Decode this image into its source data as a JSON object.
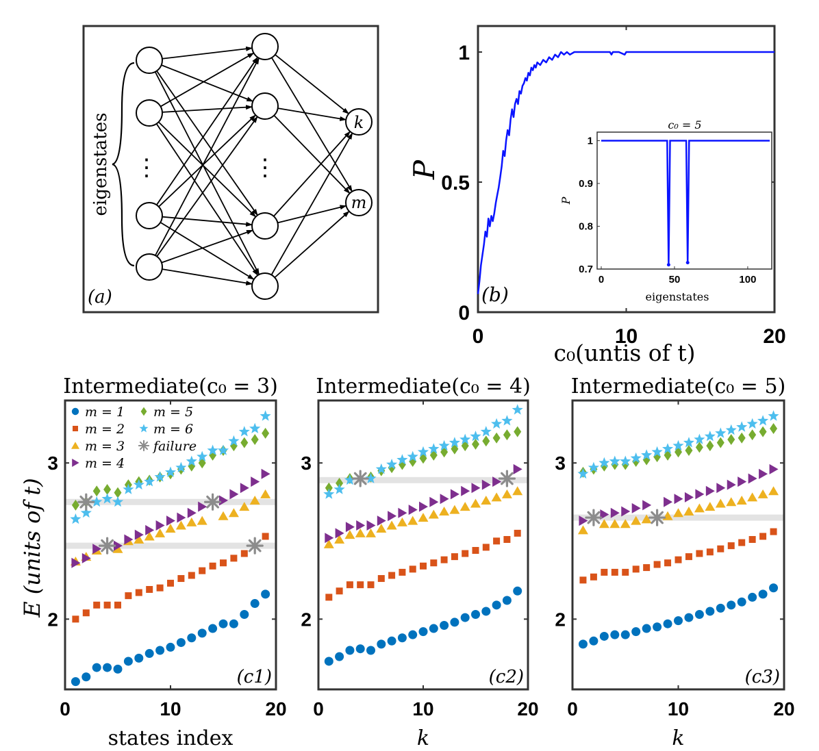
{
  "colors": {
    "m1": "#0072BD",
    "m2": "#D95319",
    "m3": "#EDB120",
    "m4": "#7E2F8E",
    "m5": "#77AC30",
    "m6": "#4DBEEE",
    "failure": "#8c8c8c",
    "prob": "#0a14ff",
    "band": "#e3e3e3"
  },
  "diagram": {
    "panel_label": "(a)",
    "input_label": "eigenstates",
    "output_labels": [
      "k",
      "m"
    ],
    "dots": "⋮"
  },
  "chart_data": [
    {
      "type": "line",
      "panel_label": "(b)",
      "xlabel": "c₀(untis of t)",
      "ylabel": "P",
      "xlim": [
        0,
        20
      ],
      "ylim": [
        0,
        1.1
      ],
      "xticks": [
        "0",
        "10",
        "20"
      ],
      "yticks": [
        "0",
        "0.5",
        "1"
      ],
      "series": [
        {
          "x": [
            0,
            0.1,
            0.2,
            0.3,
            0.4,
            0.5,
            0.6,
            0.7,
            0.8,
            0.9,
            1.0,
            1.1,
            1.2,
            1.3,
            1.4,
            1.5,
            1.6,
            1.7,
            1.8,
            1.9,
            2.0,
            2.1,
            2.2,
            2.3,
            2.4,
            2.5,
            2.6,
            2.7,
            2.8,
            2.9,
            3.0,
            3.1,
            3.2,
            3.3,
            3.4,
            3.5,
            3.6,
            3.7,
            3.8,
            3.9,
            4.0,
            4.2,
            4.4,
            4.6,
            4.8,
            5.0,
            5.2,
            5.4,
            5.6,
            5.8,
            6.0,
            6.2,
            6.5,
            7,
            8,
            8.9,
            9.0,
            9.1,
            9.5,
            9.9,
            10.0,
            10.1,
            11,
            12,
            14,
            16,
            18,
            20
          ],
          "y": [
            0.07,
            0.12,
            0.18,
            0.22,
            0.26,
            0.31,
            0.29,
            0.36,
            0.33,
            0.37,
            0.35,
            0.38,
            0.42,
            0.45,
            0.48,
            0.52,
            0.56,
            0.62,
            0.6,
            0.66,
            0.7,
            0.68,
            0.74,
            0.78,
            0.75,
            0.8,
            0.82,
            0.8,
            0.85,
            0.84,
            0.87,
            0.88,
            0.9,
            0.89,
            0.92,
            0.91,
            0.94,
            0.93,
            0.95,
            0.94,
            0.96,
            0.95,
            0.97,
            0.96,
            0.98,
            0.97,
            0.99,
            0.98,
            1.0,
            0.99,
            1.0,
            0.99,
            1.0,
            1.0,
            1.0,
            1.0,
            0.99,
            1.0,
            1.0,
            0.99,
            1.0,
            1.0,
            1.0,
            1.0,
            1.0,
            1.0,
            1.0,
            1.0
          ]
        }
      ]
    },
    {
      "type": "line",
      "title": "c₀ = 5",
      "xlabel": "eigenstates",
      "ylabel": "P",
      "xlim": [
        0,
        115
      ],
      "ylim": [
        0.7,
        1.02
      ],
      "xticks": [
        "0",
        "50",
        "100"
      ],
      "yticks": [
        "0.7",
        "0.8",
        "0.9",
        "1"
      ],
      "series": [
        {
          "x": [
            0,
            45,
            46,
            47,
            58,
            59,
            60,
            115
          ],
          "y": [
            1,
            1,
            0.71,
            1,
            1,
            0.715,
            1,
            1
          ]
        }
      ]
    },
    {
      "type": "scatter",
      "panel_label": "(c1)",
      "title": "Intermediate(c₀ = 3)",
      "xlabel": "states index",
      "ylabel": "E (units of t)",
      "xlim": [
        0,
        20
      ],
      "ylim": [
        1.55,
        3.4
      ],
      "xticks": [
        "0",
        "10",
        "20"
      ],
      "yticks": [
        "2",
        "3"
      ],
      "legend": {
        "placement": "top-left",
        "entries": [
          {
            "key": "m1",
            "label": "m = 1"
          },
          {
            "key": "m5",
            "label": "m = 5"
          },
          {
            "key": "m2",
            "label": "m = 2"
          },
          {
            "key": "m6",
            "label": "m = 6"
          },
          {
            "key": "m3",
            "label": "m = 3"
          },
          {
            "key": "failure",
            "label": "failure"
          },
          {
            "key": "m4",
            "label": "m = 4"
          }
        ]
      },
      "bands": [
        2.47,
        2.75
      ],
      "series": [
        {
          "name": "m = 1",
          "key": "m1",
          "x": [
            1,
            2,
            3,
            4,
            5,
            6,
            7,
            8,
            9,
            10,
            11,
            12,
            13,
            14,
            15,
            16,
            17,
            18,
            19
          ],
          "y": [
            1.6,
            1.63,
            1.69,
            1.69,
            1.68,
            1.73,
            1.75,
            1.78,
            1.8,
            1.82,
            1.85,
            1.88,
            1.91,
            1.94,
            1.97,
            1.97,
            2.03,
            2.1,
            2.16
          ]
        },
        {
          "name": "m = 2",
          "key": "m2",
          "x": [
            1,
            2,
            3,
            4,
            5,
            6,
            7,
            8,
            9,
            10,
            11,
            12,
            13,
            14,
            15,
            16,
            17,
            19
          ],
          "y": [
            2.0,
            2.04,
            2.09,
            2.09,
            2.09,
            2.15,
            2.17,
            2.19,
            2.2,
            2.23,
            2.26,
            2.28,
            2.31,
            2.34,
            2.36,
            2.39,
            2.42,
            2.53
          ]
        },
        {
          "name": "m = 3",
          "key": "m3",
          "x": [
            1,
            2,
            3,
            5,
            6,
            7,
            8,
            9,
            10,
            11,
            12,
            13,
            15,
            16,
            17,
            18,
            19
          ],
          "y": [
            2.37,
            2.4,
            2.44,
            2.45,
            2.5,
            2.51,
            2.53,
            2.55,
            2.58,
            2.6,
            2.62,
            2.63,
            2.66,
            2.68,
            2.72,
            2.76,
            2.8
          ]
        },
        {
          "name": "m = 4",
          "key": "m4",
          "x": [
            1,
            2,
            3,
            5,
            6,
            7,
            8,
            9,
            10,
            11,
            12,
            13,
            15,
            16,
            17,
            18,
            19
          ],
          "y": [
            2.36,
            2.39,
            2.45,
            2.47,
            2.51,
            2.54,
            2.57,
            2.6,
            2.63,
            2.65,
            2.68,
            2.72,
            2.76,
            2.8,
            2.84,
            2.88,
            2.93
          ]
        },
        {
          "name": "m = 5",
          "key": "m5",
          "x": [
            1,
            2,
            3,
            4,
            5,
            6,
            7,
            8,
            9,
            10,
            11,
            12,
            13,
            14,
            15,
            16,
            17,
            18,
            19
          ],
          "y": [
            2.73,
            2.75,
            2.82,
            2.83,
            2.81,
            2.86,
            2.88,
            2.89,
            2.91,
            2.93,
            2.96,
            2.98,
            3.0,
            3.05,
            3.08,
            3.11,
            3.13,
            3.15,
            3.19
          ]
        },
        {
          "name": "m = 6",
          "key": "m6",
          "x": [
            1,
            2,
            3,
            4,
            5,
            6,
            7,
            8,
            9,
            10,
            11,
            12,
            13,
            14,
            15,
            16,
            17,
            18,
            19
          ],
          "y": [
            2.64,
            2.68,
            2.75,
            2.77,
            2.75,
            2.83,
            2.86,
            2.88,
            2.91,
            2.94,
            2.97,
            3.01,
            3.04,
            3.08,
            3.08,
            3.14,
            3.2,
            3.22,
            3.3
          ]
        },
        {
          "name": "failure",
          "key": "failure",
          "x": [
            2,
            4,
            14,
            18
          ],
          "y": [
            2.75,
            2.47,
            2.75,
            2.47
          ]
        }
      ]
    },
    {
      "type": "scatter",
      "panel_label": "(c2)",
      "title": "Intermediate(c₀ = 4)",
      "xlabel": "k",
      "ylabel": "",
      "xlim": [
        0,
        20
      ],
      "ylim": [
        1.55,
        3.4
      ],
      "xticks": [
        "0",
        "10",
        "20"
      ],
      "yticks": [
        "2",
        "3"
      ],
      "bands": [
        2.89
      ],
      "series": [
        {
          "name": "m = 1",
          "key": "m1",
          "x": [
            1,
            2,
            3,
            4,
            5,
            6,
            7,
            8,
            9,
            10,
            11,
            12,
            13,
            14,
            15,
            16,
            17,
            18,
            19
          ],
          "y": [
            1.73,
            1.76,
            1.8,
            1.81,
            1.8,
            1.84,
            1.86,
            1.88,
            1.9,
            1.92,
            1.94,
            1.96,
            1.98,
            2.01,
            2.03,
            2.05,
            2.09,
            2.12,
            2.18
          ]
        },
        {
          "name": "m = 2",
          "key": "m2",
          "x": [
            1,
            2,
            3,
            4,
            5,
            6,
            7,
            8,
            9,
            10,
            11,
            12,
            13,
            14,
            15,
            16,
            17,
            18,
            19
          ],
          "y": [
            2.14,
            2.18,
            2.22,
            2.22,
            2.22,
            2.26,
            2.28,
            2.3,
            2.32,
            2.34,
            2.36,
            2.38,
            2.4,
            2.42,
            2.44,
            2.46,
            2.5,
            2.51,
            2.55
          ]
        },
        {
          "name": "m = 3",
          "key": "m3",
          "x": [
            1,
            2,
            3,
            4,
            5,
            6,
            7,
            8,
            9,
            10,
            11,
            12,
            13,
            14,
            15,
            16,
            17,
            18,
            19
          ],
          "y": [
            2.48,
            2.51,
            2.54,
            2.55,
            2.55,
            2.58,
            2.6,
            2.62,
            2.63,
            2.65,
            2.67,
            2.69,
            2.7,
            2.72,
            2.74,
            2.76,
            2.78,
            2.8,
            2.82
          ]
        },
        {
          "name": "m = 4",
          "key": "m4",
          "x": [
            1,
            2,
            3,
            4,
            5,
            6,
            7,
            8,
            9,
            10,
            11,
            12,
            13,
            14,
            15,
            16,
            17,
            19
          ],
          "y": [
            2.52,
            2.55,
            2.59,
            2.6,
            2.6,
            2.63,
            2.66,
            2.68,
            2.7,
            2.72,
            2.75,
            2.77,
            2.8,
            2.82,
            2.84,
            2.86,
            2.88,
            2.96
          ]
        },
        {
          "name": "m = 5",
          "key": "m5",
          "x": [
            1,
            2,
            3,
            5,
            6,
            7,
            8,
            9,
            10,
            11,
            12,
            13,
            14,
            15,
            16,
            17,
            18,
            19
          ],
          "y": [
            2.84,
            2.87,
            2.9,
            2.91,
            2.95,
            2.97,
            2.99,
            3.01,
            3.03,
            3.05,
            3.07,
            3.09,
            3.11,
            3.12,
            3.14,
            3.16,
            3.18,
            3.2
          ]
        },
        {
          "name": "m = 6",
          "key": "m6",
          "x": [
            1,
            2,
            3,
            5,
            6,
            7,
            8,
            9,
            10,
            11,
            12,
            13,
            14,
            15,
            16,
            17,
            18,
            19
          ],
          "y": [
            2.8,
            2.83,
            2.89,
            2.9,
            2.96,
            2.99,
            3.02,
            3.04,
            3.07,
            3.09,
            3.11,
            3.13,
            3.15,
            3.17,
            3.2,
            3.25,
            3.27,
            3.34
          ]
        },
        {
          "name": "failure",
          "key": "failure",
          "x": [
            4,
            18
          ],
          "y": [
            2.9,
            2.9
          ]
        }
      ]
    },
    {
      "type": "scatter",
      "panel_label": "(c3)",
      "title": "Intermediate(c₀ = 5)",
      "xlabel": "k",
      "ylabel": "",
      "xlim": [
        0,
        20
      ],
      "ylim": [
        1.55,
        3.4
      ],
      "xticks": [
        "0",
        "10",
        "20"
      ],
      "yticks": [
        "2",
        "3"
      ],
      "bands": [
        2.65
      ],
      "series": [
        {
          "name": "m = 1",
          "key": "m1",
          "x": [
            1,
            2,
            3,
            4,
            5,
            6,
            7,
            8,
            9,
            10,
            11,
            12,
            13,
            14,
            15,
            16,
            17,
            18,
            19
          ],
          "y": [
            1.84,
            1.86,
            1.89,
            1.9,
            1.9,
            1.92,
            1.94,
            1.95,
            1.97,
            1.99,
            2.01,
            2.03,
            2.05,
            2.07,
            2.09,
            2.11,
            2.14,
            2.16,
            2.2
          ]
        },
        {
          "name": "m = 2",
          "key": "m2",
          "x": [
            1,
            2,
            3,
            4,
            5,
            6,
            7,
            8,
            9,
            10,
            11,
            12,
            13,
            14,
            15,
            16,
            17,
            18,
            19
          ],
          "y": [
            2.25,
            2.27,
            2.3,
            2.3,
            2.3,
            2.32,
            2.33,
            2.35,
            2.36,
            2.38,
            2.4,
            2.42,
            2.43,
            2.45,
            2.47,
            2.49,
            2.51,
            2.53,
            2.56
          ]
        },
        {
          "name": "m = 3",
          "key": "m3",
          "x": [
            1,
            3,
            4,
            5,
            6,
            7,
            9,
            10,
            11,
            12,
            13,
            14,
            15,
            16,
            17,
            18,
            19
          ],
          "y": [
            2.57,
            2.61,
            2.61,
            2.61,
            2.63,
            2.64,
            2.66,
            2.68,
            2.69,
            2.71,
            2.72,
            2.74,
            2.75,
            2.76,
            2.78,
            2.8,
            2.82
          ]
        },
        {
          "name": "m = 4",
          "key": "m4",
          "x": [
            1,
            3,
            4,
            5,
            6,
            7,
            9,
            10,
            11,
            12,
            13,
            14,
            15,
            16,
            17,
            18,
            19
          ],
          "y": [
            2.63,
            2.67,
            2.68,
            2.69,
            2.71,
            2.73,
            2.75,
            2.77,
            2.78,
            2.8,
            2.82,
            2.84,
            2.86,
            2.88,
            2.9,
            2.93,
            2.96
          ]
        },
        {
          "name": "m = 5",
          "key": "m5",
          "x": [
            1,
            2,
            3,
            4,
            5,
            6,
            7,
            8,
            9,
            10,
            11,
            12,
            13,
            14,
            15,
            16,
            17,
            18,
            19
          ],
          "y": [
            2.94,
            2.96,
            2.98,
            2.99,
            2.99,
            3.01,
            3.02,
            3.04,
            3.05,
            3.07,
            3.08,
            3.1,
            3.11,
            3.13,
            3.15,
            3.16,
            3.18,
            3.2,
            3.22
          ]
        },
        {
          "name": "m = 6",
          "key": "m6",
          "x": [
            1,
            2,
            3,
            4,
            5,
            6,
            7,
            8,
            9,
            10,
            11,
            12,
            13,
            14,
            15,
            16,
            17,
            18,
            19
          ],
          "y": [
            2.93,
            2.97,
            3.0,
            3.01,
            3.01,
            3.03,
            3.05,
            3.07,
            3.09,
            3.11,
            3.13,
            3.15,
            3.17,
            3.19,
            3.21,
            3.23,
            3.25,
            3.27,
            3.3
          ]
        },
        {
          "name": "failure",
          "key": "failure",
          "x": [
            2,
            8
          ],
          "y": [
            2.65,
            2.65
          ]
        }
      ]
    }
  ]
}
